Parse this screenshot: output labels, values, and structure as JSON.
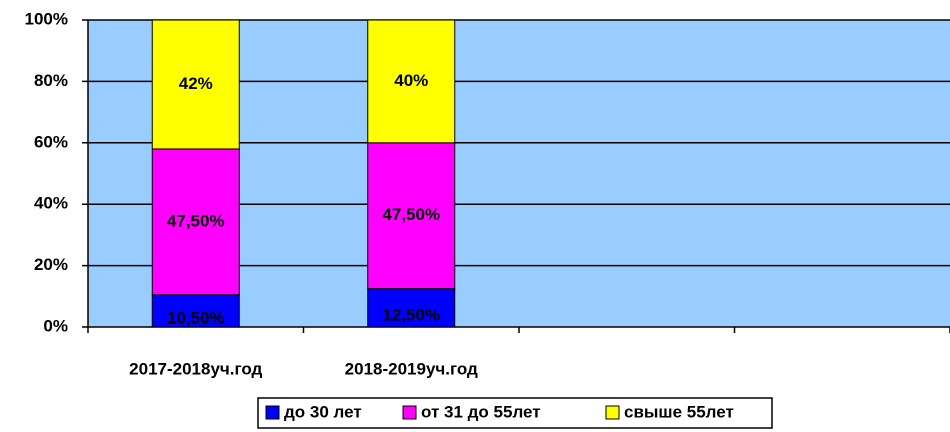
{
  "chart_data": {
    "type": "bar",
    "stacked": true,
    "categories": [
      "2017-2018уч.год",
      "2018-2019уч.год",
      null,
      null
    ],
    "series": [
      {
        "name": "до 30 лет",
        "color": "#0000ff",
        "values": [
          10.5,
          12.5,
          null,
          null
        ],
        "value_labels": [
          "10,50%",
          "12,50%",
          null,
          null
        ]
      },
      {
        "name": "от 31 до 55лет",
        "color": "#ff00ff",
        "values": [
          47.5,
          47.5,
          null,
          null
        ],
        "value_labels": [
          "47,50%",
          "47,50%",
          null,
          null
        ]
      },
      {
        "name": "свыше 55лет",
        "color": "#ffff00",
        "values": [
          42,
          40,
          null,
          null
        ],
        "value_labels": [
          "42%",
          "40%",
          null,
          null
        ]
      }
    ],
    "ylim": [
      0,
      100
    ],
    "yticks": [
      {
        "value": 0,
        "label": "0%"
      },
      {
        "value": 20,
        "label": "20%"
      },
      {
        "value": 40,
        "label": "40%"
      },
      {
        "value": 60,
        "label": "60%"
      },
      {
        "value": 80,
        "label": "80%"
      },
      {
        "value": 100,
        "label": "100%"
      }
    ],
    "grid": true,
    "legend": "bottom",
    "plot_background": "#99ccff"
  }
}
